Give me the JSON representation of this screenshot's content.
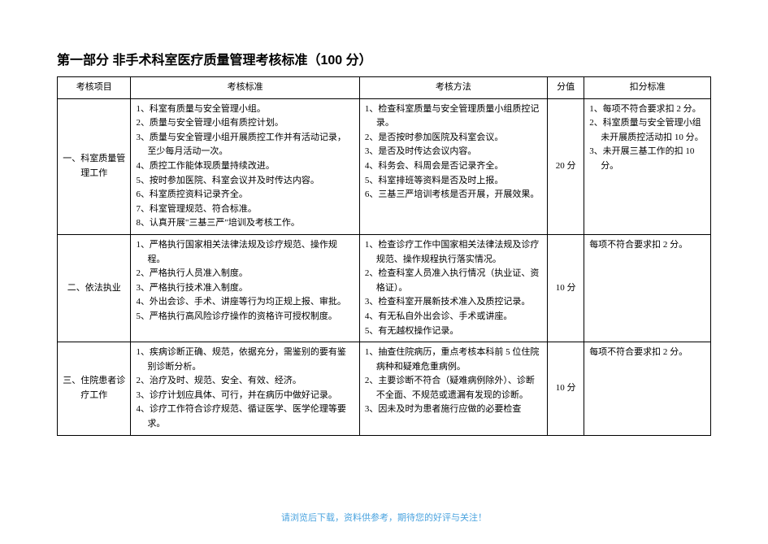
{
  "title": "第一部分 非手术科室医疗质量管理考核标准（100 分）",
  "headers": {
    "col1": "考核项目",
    "col2": "考核标准",
    "col3": "考核方法",
    "col4": "分值",
    "col5": "扣分标准"
  },
  "rows": [
    {
      "item": "一、科室质量管理工作",
      "standards": [
        "1、科室有质量与安全管理小组。",
        "2、质量与安全管理小组有质控计划。",
        "3、质量与安全管理小组开展质控工作并有活动记录，至少每月活动一次。",
        "4、质控工作能体现质量持续改进。",
        "5、按时参加医院、科室会议并及时传达内容。",
        "6、科室质控资料记录齐全。",
        "7、科室管理规范、符合标准。",
        "8、认真开展\"三基三严\"培训及考核工作。"
      ],
      "methods": [
        "1、检查科室质量与安全管理质量小组质控记录。",
        "2、是否按时参加医院及科室会议。",
        "3、是否及时传达会议内容。",
        "4、科务会、科周会是否记录齐全。",
        "5、科室排班等资料是否及时上报。",
        "6、三基三严培训考核是否开展，开展效果。"
      ],
      "score": "20 分",
      "deduct": [
        "1、每项不符合要求扣 2 分。",
        "2、科室质量与安全管理小组未开展质控活动扣 10 分。",
        "3、未开展三基工作的扣 10 分。"
      ]
    },
    {
      "item": "二、依法执业",
      "standards": [
        "1、严格执行国家相关法律法规及诊疗规范、操作规程。",
        "2、严格执行人员准入制度。",
        "3、严格执行技术准入制度。",
        "4、外出会诊、手术、讲座等行为均正规上报、审批。",
        "5、严格执行高风险诊疗操作的资格许可授权制度。"
      ],
      "methods": [
        "1、检查诊疗工作中国家相关法律法规及诊疗规范、操作规程执行落实情况。",
        "2、检查科室人员准入执行情况（执业证、资格证）。",
        "3、检查科室开展新技术准入及质控记录。",
        "4、有无私自外出会诊、手术或讲座。",
        "5、有无越权操作记录。"
      ],
      "score": "10 分",
      "deduct": [
        "每项不符合要求扣 2 分。"
      ]
    },
    {
      "item": "三、住院患者诊疗工作",
      "standards": [
        "1、疾病诊断正确、规范，依据充分，需鉴别的要有鉴别诊断分析。",
        "2、治疗及时、规范、安全、有效、经济。",
        "3、诊疗计划应具体、可行，并在病历中做好记录。",
        "4、诊疗工作符合诊疗规范、循证医学、医学伦理等要求。"
      ],
      "methods": [
        "1、抽查住院病历，重点考核本科前 5 位住院病种和疑难危重病例。",
        "2、主要诊断不符合（疑难病例除外）、诊断不全面、不规范或遗漏有发现的诊断。",
        "3、因未及时为患者施行应做的必要检查"
      ],
      "score": "10 分",
      "deduct": [
        "每项不符合要求扣 2 分。"
      ]
    }
  ],
  "footer": "请浏览后下载，资料供参考，期待您的好评与关注！",
  "colors": {
    "text": "#000000",
    "border": "#000000",
    "footer": "#4aa3df",
    "background": "#ffffff"
  },
  "fontsize": {
    "title": 16,
    "cell": 11,
    "footer": 11
  }
}
